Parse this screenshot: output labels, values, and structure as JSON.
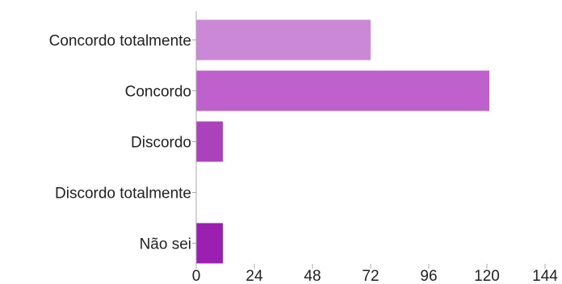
{
  "chart_data": {
    "type": "bar",
    "orientation": "horizontal",
    "categories": [
      "Concordo totalmente",
      "Concordo",
      "Discordo",
      "Discordo totalmente",
      "Não sei"
    ],
    "values": [
      72,
      121,
      11,
      0,
      11
    ],
    "colors": [
      "#cb88d6",
      "#bf61cd",
      "#ab42bc",
      "#a329b6",
      "#9b1fb0"
    ],
    "xlim": [
      0,
      144
    ],
    "xticks": [
      0,
      24,
      48,
      72,
      96,
      120,
      144
    ],
    "grid": false,
    "legend": "none"
  }
}
